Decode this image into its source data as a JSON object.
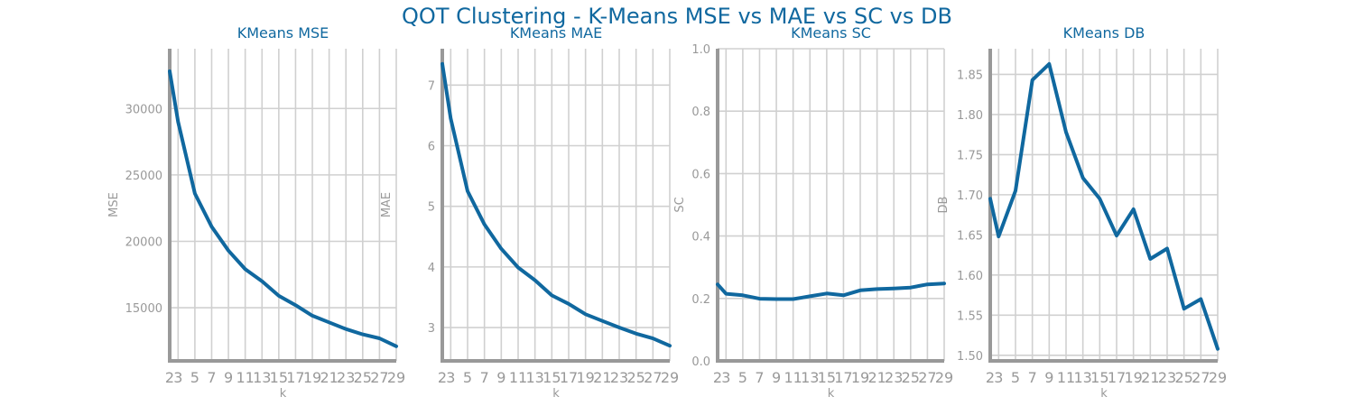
{
  "figure": {
    "title": "QOT Clustering - K-Means MSE vs MAE vs SC vs DB"
  },
  "colors": {
    "line": "#10689f",
    "title": "#10689f",
    "axis": "#999999",
    "grid": "#d0d0d0",
    "tick_text": "#999999"
  },
  "chart_data": [
    {
      "type": "line",
      "title": "KMeans MSE",
      "xlabel": "k",
      "ylabel": "MSE",
      "grid": true,
      "x": [
        2,
        3,
        5,
        7,
        9,
        11,
        13,
        15,
        17,
        19,
        21,
        23,
        25,
        27,
        29
      ],
      "x_ticks": [
        "2",
        "3",
        "5",
        "7",
        "9",
        "11",
        "13",
        "15",
        "17",
        "19",
        "21",
        "23",
        "25",
        "27",
        "29"
      ],
      "y": [
        32800,
        29000,
        23600,
        21100,
        19300,
        17900,
        17000,
        15900,
        15200,
        14400,
        13900,
        13400,
        13000,
        12700,
        12100
      ],
      "ylim": [
        11000,
        34500
      ],
      "y_ticks": [
        15000,
        20000,
        25000,
        30000
      ],
      "y_tick_labels": [
        "15000",
        "20000",
        "25000",
        "30000"
      ]
    },
    {
      "type": "line",
      "title": "KMeans MAE",
      "xlabel": "k",
      "ylabel": "MAE",
      "grid": true,
      "x": [
        2,
        3,
        5,
        7,
        9,
        11,
        13,
        15,
        17,
        19,
        21,
        23,
        25,
        27,
        29
      ],
      "x_ticks": [
        "2",
        "3",
        "5",
        "7",
        "9",
        "11",
        "13",
        "15",
        "17",
        "19",
        "21",
        "23",
        "25",
        "27",
        "29"
      ],
      "y": [
        7.35,
        6.45,
        5.25,
        4.7,
        4.3,
        3.99,
        3.78,
        3.53,
        3.39,
        3.22,
        3.11,
        3.0,
        2.9,
        2.82,
        2.7
      ],
      "ylim": [
        2.45,
        7.6
      ],
      "y_ticks": [
        3,
        4,
        5,
        6,
        7
      ],
      "y_tick_labels": [
        "3",
        "4",
        "5",
        "6",
        "7"
      ]
    },
    {
      "type": "line",
      "title": "KMeans SC",
      "xlabel": "k",
      "ylabel": "SC",
      "grid": true,
      "x": [
        2,
        3,
        5,
        7,
        9,
        11,
        13,
        15,
        17,
        19,
        21,
        23,
        25,
        27,
        29
      ],
      "x_ticks": [
        "2",
        "3",
        "5",
        "7",
        "9",
        "11",
        "13",
        "15",
        "17",
        "19",
        "21",
        "23",
        "25",
        "27",
        "29"
      ],
      "y": [
        0.245,
        0.215,
        0.21,
        0.199,
        0.198,
        0.198,
        0.207,
        0.216,
        0.21,
        0.226,
        0.23,
        0.232,
        0.235,
        0.245,
        0.248
      ],
      "ylim": [
        0.0,
        1.0
      ],
      "y_ticks": [
        0.0,
        0.2,
        0.4,
        0.6,
        0.8,
        1.0
      ],
      "y_tick_labels": [
        "0.0",
        "0.2",
        "0.4",
        "0.6",
        "0.8",
        "1.0"
      ]
    },
    {
      "type": "line",
      "title": "KMeans DB",
      "xlabel": "k",
      "ylabel": "DB",
      "grid": true,
      "x": [
        2,
        3,
        5,
        7,
        9,
        11,
        13,
        15,
        17,
        19,
        21,
        23,
        25,
        27,
        29
      ],
      "x_ticks": [
        "2",
        "3",
        "5",
        "7",
        "9",
        "11",
        "13",
        "15",
        "17",
        "19",
        "21",
        "23",
        "25",
        "27",
        "29"
      ],
      "y": [
        1.695,
        1.648,
        1.705,
        1.843,
        1.863,
        1.778,
        1.721,
        1.695,
        1.649,
        1.682,
        1.62,
        1.633,
        1.558,
        1.57,
        1.508
      ],
      "ylim": [
        1.493,
        1.882
      ],
      "y_ticks": [
        1.5,
        1.55,
        1.6,
        1.65,
        1.7,
        1.75,
        1.8,
        1.85
      ],
      "y_tick_labels": [
        "1.50",
        "1.55",
        "1.60",
        "1.65",
        "1.70",
        "1.75",
        "1.80",
        "1.85"
      ]
    }
  ]
}
